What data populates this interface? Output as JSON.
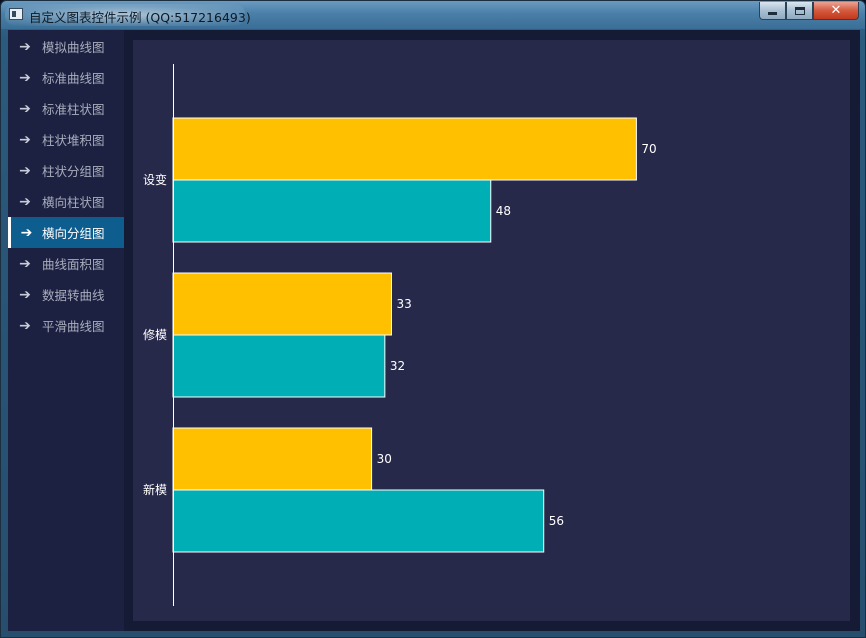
{
  "window": {
    "title": "自定义图表控件示例 (QQ:517216493)",
    "close_glyph": "✕"
  },
  "sidebar": {
    "items": [
      {
        "label": "模拟曲线图",
        "icon": "arrow-right-icon"
      },
      {
        "label": "标准曲线图",
        "icon": "arrow-right-icon"
      },
      {
        "label": "标准柱状图",
        "icon": "arrow-right-icon"
      },
      {
        "label": "柱状堆积图",
        "icon": "arrow-right-icon"
      },
      {
        "label": "柱状分组图",
        "icon": "arrow-right-icon"
      },
      {
        "label": "横向柱状图",
        "icon": "arrow-right-icon"
      },
      {
        "label": "横向分组图",
        "icon": "arrow-right-icon",
        "active": true
      },
      {
        "label": "曲线面积图",
        "icon": "arrow-right-icon"
      },
      {
        "label": "数据转曲线",
        "icon": "arrow-right-icon"
      },
      {
        "label": "平滑曲线图",
        "icon": "arrow-right-icon"
      }
    ],
    "arrow_glyph": "➔"
  },
  "colors": {
    "series1": "#FFC000",
    "series2": "#00AFB5",
    "active_nav": "#0E5D8F",
    "chart_bg": "#27294B"
  },
  "chart_data": {
    "type": "bar",
    "orientation": "horizontal",
    "categories": [
      "设变",
      "修模",
      "新模"
    ],
    "series": [
      {
        "values": [
          70,
          33,
          30
        ],
        "color": "#FFC000"
      },
      {
        "values": [
          48,
          32,
          56
        ],
        "color": "#00AFB5"
      }
    ],
    "xlim": [
      0,
      100
    ],
    "grid": false,
    "data_labels": true,
    "legend": "none"
  }
}
